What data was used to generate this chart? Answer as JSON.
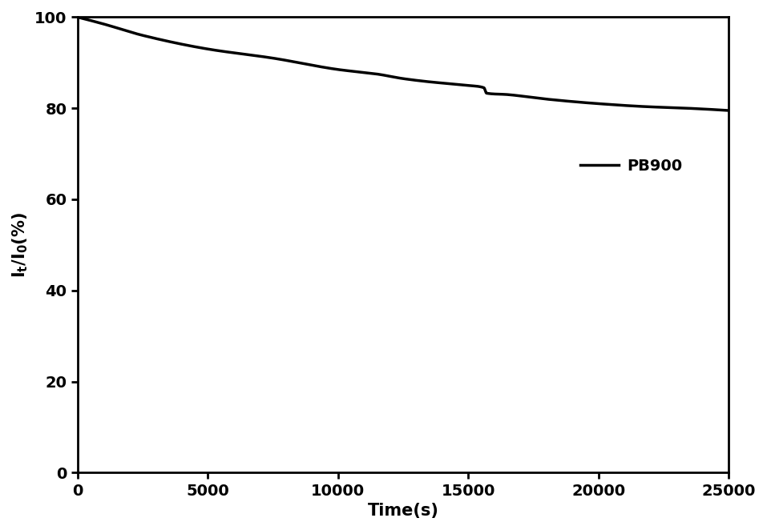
{
  "title": "",
  "xlabel": "Time(s)",
  "ylabel": "$I_t/I_0$(%%)",
  "xlim": [
    0,
    25000
  ],
  "ylim": [
    0,
    100
  ],
  "xticks": [
    0,
    5000,
    10000,
    15000,
    20000,
    25000
  ],
  "yticks": [
    0,
    20,
    40,
    60,
    80,
    100
  ],
  "legend_label": "PB900",
  "legend_loc": "center right",
  "line_color": "#000000",
  "line_width": 2.5,
  "background_color": "#ffffff",
  "key_points": [
    [
      0,
      100
    ],
    [
      1000,
      98.5
    ],
    [
      2500,
      96.0
    ],
    [
      5000,
      93.0
    ],
    [
      7500,
      91.0
    ],
    [
      10000,
      88.5
    ],
    [
      11500,
      87.5
    ],
    [
      12500,
      86.5
    ],
    [
      13500,
      85.8
    ],
    [
      15000,
      85.0
    ],
    [
      15600,
      84.5
    ],
    [
      15700,
      83.3
    ],
    [
      16500,
      83.0
    ],
    [
      18000,
      82.0
    ],
    [
      20000,
      81.0
    ],
    [
      22000,
      80.3
    ],
    [
      23000,
      80.1
    ],
    [
      25000,
      79.5
    ]
  ]
}
